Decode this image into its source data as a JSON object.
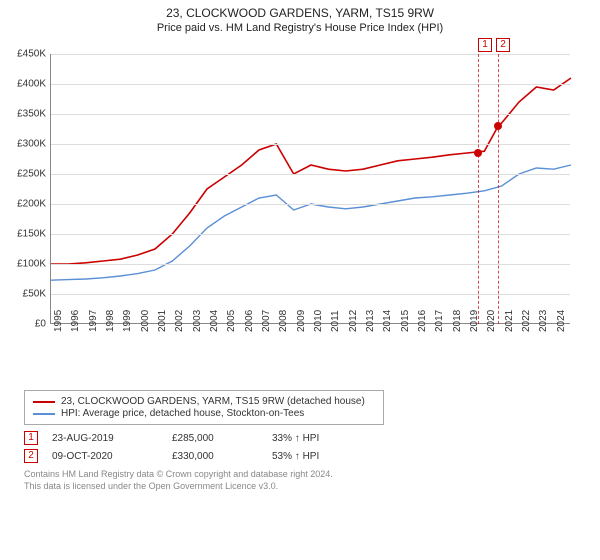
{
  "title": "23, CLOCKWOOD GARDENS, YARM, TS15 9RW",
  "subtitle": "Price paid vs. HM Land Registry's House Price Index (HPI)",
  "chart": {
    "type": "line",
    "background_color": "#ffffff",
    "grid_color": "#dddddd",
    "axis_color": "#888888",
    "xlim": [
      1995,
      2025
    ],
    "ylim": [
      0,
      450000
    ],
    "ytick_step": 50000,
    "ytick_prefix": "£",
    "ytick_suffix": "K",
    "xticks": [
      1995,
      1996,
      1997,
      1998,
      1999,
      2000,
      2001,
      2002,
      2003,
      2004,
      2005,
      2006,
      2007,
      2008,
      2009,
      2010,
      2011,
      2012,
      2013,
      2014,
      2015,
      2016,
      2017,
      2018,
      2019,
      2020,
      2021,
      2022,
      2023,
      2024
    ],
    "series": [
      {
        "key": "property",
        "label": "23, CLOCKWOOD GARDENS, YARM, TS15 9RW (detached house)",
        "color": "#cc0000",
        "line_width": 1.6,
        "data": [
          [
            1995,
            100000
          ],
          [
            1996,
            100000
          ],
          [
            1997,
            102000
          ],
          [
            1998,
            105000
          ],
          [
            1999,
            108000
          ],
          [
            2000,
            115000
          ],
          [
            2001,
            125000
          ],
          [
            2002,
            150000
          ],
          [
            2003,
            185000
          ],
          [
            2004,
            225000
          ],
          [
            2005,
            245000
          ],
          [
            2006,
            265000
          ],
          [
            2007,
            290000
          ],
          [
            2008,
            300000
          ],
          [
            2009,
            250000
          ],
          [
            2010,
            265000
          ],
          [
            2011,
            258000
          ],
          [
            2012,
            255000
          ],
          [
            2013,
            258000
          ],
          [
            2014,
            265000
          ],
          [
            2015,
            272000
          ],
          [
            2016,
            275000
          ],
          [
            2017,
            278000
          ],
          [
            2018,
            282000
          ],
          [
            2019,
            285000
          ],
          [
            2020,
            288000
          ],
          [
            2020.8,
            330000
          ],
          [
            2021,
            335000
          ],
          [
            2022,
            370000
          ],
          [
            2023,
            395000
          ],
          [
            2024,
            390000
          ],
          [
            2025,
            410000
          ]
        ]
      },
      {
        "key": "hpi",
        "label": "HPI: Average price, detached house, Stockton-on-Tees",
        "color": "#5b8fd6",
        "line_width": 1.4,
        "data": [
          [
            1995,
            73000
          ],
          [
            1996,
            74000
          ],
          [
            1997,
            75000
          ],
          [
            1998,
            77000
          ],
          [
            1999,
            80000
          ],
          [
            2000,
            84000
          ],
          [
            2001,
            90000
          ],
          [
            2002,
            105000
          ],
          [
            2003,
            130000
          ],
          [
            2004,
            160000
          ],
          [
            2005,
            180000
          ],
          [
            2006,
            195000
          ],
          [
            2007,
            210000
          ],
          [
            2008,
            215000
          ],
          [
            2009,
            190000
          ],
          [
            2010,
            200000
          ],
          [
            2011,
            195000
          ],
          [
            2012,
            192000
          ],
          [
            2013,
            195000
          ],
          [
            2014,
            200000
          ],
          [
            2015,
            205000
          ],
          [
            2016,
            210000
          ],
          [
            2017,
            212000
          ],
          [
            2018,
            215000
          ],
          [
            2019,
            218000
          ],
          [
            2020,
            222000
          ],
          [
            2021,
            230000
          ],
          [
            2022,
            250000
          ],
          [
            2023,
            260000
          ],
          [
            2024,
            258000
          ],
          [
            2025,
            265000
          ]
        ]
      }
    ],
    "marker_color": "#cc0000",
    "marker_border": "#cc0000",
    "sale_markers": [
      {
        "n": "1",
        "x": 2019.65,
        "y": 285000
      },
      {
        "n": "2",
        "x": 2020.77,
        "y": 330000
      }
    ]
  },
  "legend": {
    "rows": [
      {
        "color": "#cc0000",
        "label": "23, CLOCKWOOD GARDENS, YARM, TS15 9RW (detached house)"
      },
      {
        "color": "#5b8fd6",
        "label": "HPI: Average price, detached house, Stockton-on-Tees"
      }
    ]
  },
  "sales": [
    {
      "n": "1",
      "date": "23-AUG-2019",
      "price": "£285,000",
      "delta": "33% ↑ HPI"
    },
    {
      "n": "2",
      "date": "09-OCT-2020",
      "price": "£330,000",
      "delta": "53% ↑ HPI"
    }
  ],
  "footer_line1": "Contains HM Land Registry data © Crown copyright and database right 2024.",
  "footer_line2": "This data is licensed under the Open Government Licence v3.0."
}
